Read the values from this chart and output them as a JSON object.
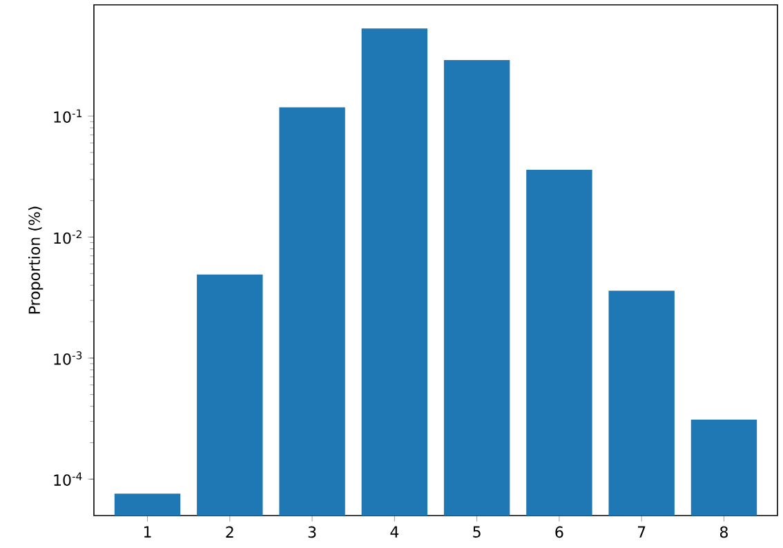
{
  "chart_data": {
    "type": "bar",
    "ylabel": "Proportion (%)",
    "log": "y",
    "categories": [
      "1",
      "2",
      "3",
      "4",
      "5",
      "6",
      "7",
      "8"
    ],
    "values": [
      7.6e-05,
      0.0049,
      0.118,
      0.53,
      0.29,
      0.036,
      0.0036,
      0.00031
    ],
    "color": "#1f77b4",
    "ylim": [
      5e-05,
      0.83
    ],
    "yticks": [
      {
        "value": 0.0001,
        "label": "10$^{-4}$"
      },
      {
        "value": 0.001,
        "label": "10$^{-3}$"
      },
      {
        "value": 0.01,
        "label": "10$^{-2}$"
      },
      {
        "value": 0.1,
        "label": "10$^{-1}$"
      }
    ]
  }
}
